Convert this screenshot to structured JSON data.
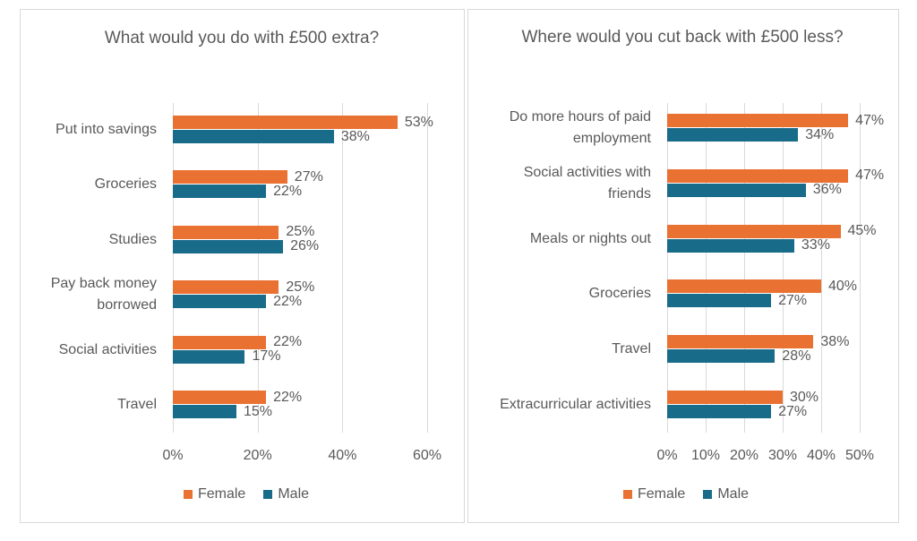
{
  "chart_data": [
    {
      "type": "bar",
      "orientation": "horizontal",
      "title": "What would you do with £500 extra?",
      "categories": [
        "Put into savings",
        "Groceries",
        "Studies",
        "Pay back money borrowed",
        "Social activities",
        "Travel"
      ],
      "series": [
        {
          "name": "Female",
          "color": "#e97132",
          "values": [
            53,
            27,
            25,
            25,
            22,
            22
          ],
          "value_labels": [
            "53%",
            "27%",
            "25%",
            "25%",
            "22%",
            "22%"
          ]
        },
        {
          "name": "Male",
          "color": "#196b8a",
          "values": [
            38,
            22,
            26,
            22,
            17,
            15
          ],
          "value_labels": [
            "38%",
            "22%",
            "26%",
            "22%",
            "17%",
            "15%"
          ]
        }
      ],
      "xlim": [
        0,
        60
      ],
      "xticks": [
        {
          "value": 0,
          "label": "0%"
        },
        {
          "value": 20,
          "label": "20%"
        },
        {
          "value": 40,
          "label": "40%"
        },
        {
          "value": 60,
          "label": "60%"
        }
      ],
      "grid": true,
      "legend": "bottom"
    },
    {
      "type": "bar",
      "orientation": "horizontal",
      "title": "Where would you cut back with £500 less?",
      "categories": [
        "Do more hours of paid employment",
        "Social activities with friends",
        "Meals or nights out",
        "Groceries",
        "Travel",
        "Extracurricular activities"
      ],
      "series": [
        {
          "name": "Female",
          "color": "#e97132",
          "values": [
            47,
            47,
            45,
            40,
            38,
            30
          ],
          "value_labels": [
            "47%",
            "47%",
            "45%",
            "40%",
            "38%",
            "30%"
          ]
        },
        {
          "name": "Male",
          "color": "#196b8a",
          "values": [
            34,
            36,
            33,
            27,
            28,
            27
          ],
          "value_labels": [
            "34%",
            "36%",
            "33%",
            "27%",
            "28%",
            "27%"
          ]
        }
      ],
      "xlim": [
        0,
        50
      ],
      "xticks": [
        {
          "value": 0,
          "label": "0%"
        },
        {
          "value": 10,
          "label": "10%"
        },
        {
          "value": 20,
          "label": "20%"
        },
        {
          "value": 30,
          "label": "30%"
        },
        {
          "value": 40,
          "label": "40%"
        },
        {
          "value": 50,
          "label": "50%"
        }
      ],
      "grid": true,
      "legend": "bottom"
    }
  ]
}
